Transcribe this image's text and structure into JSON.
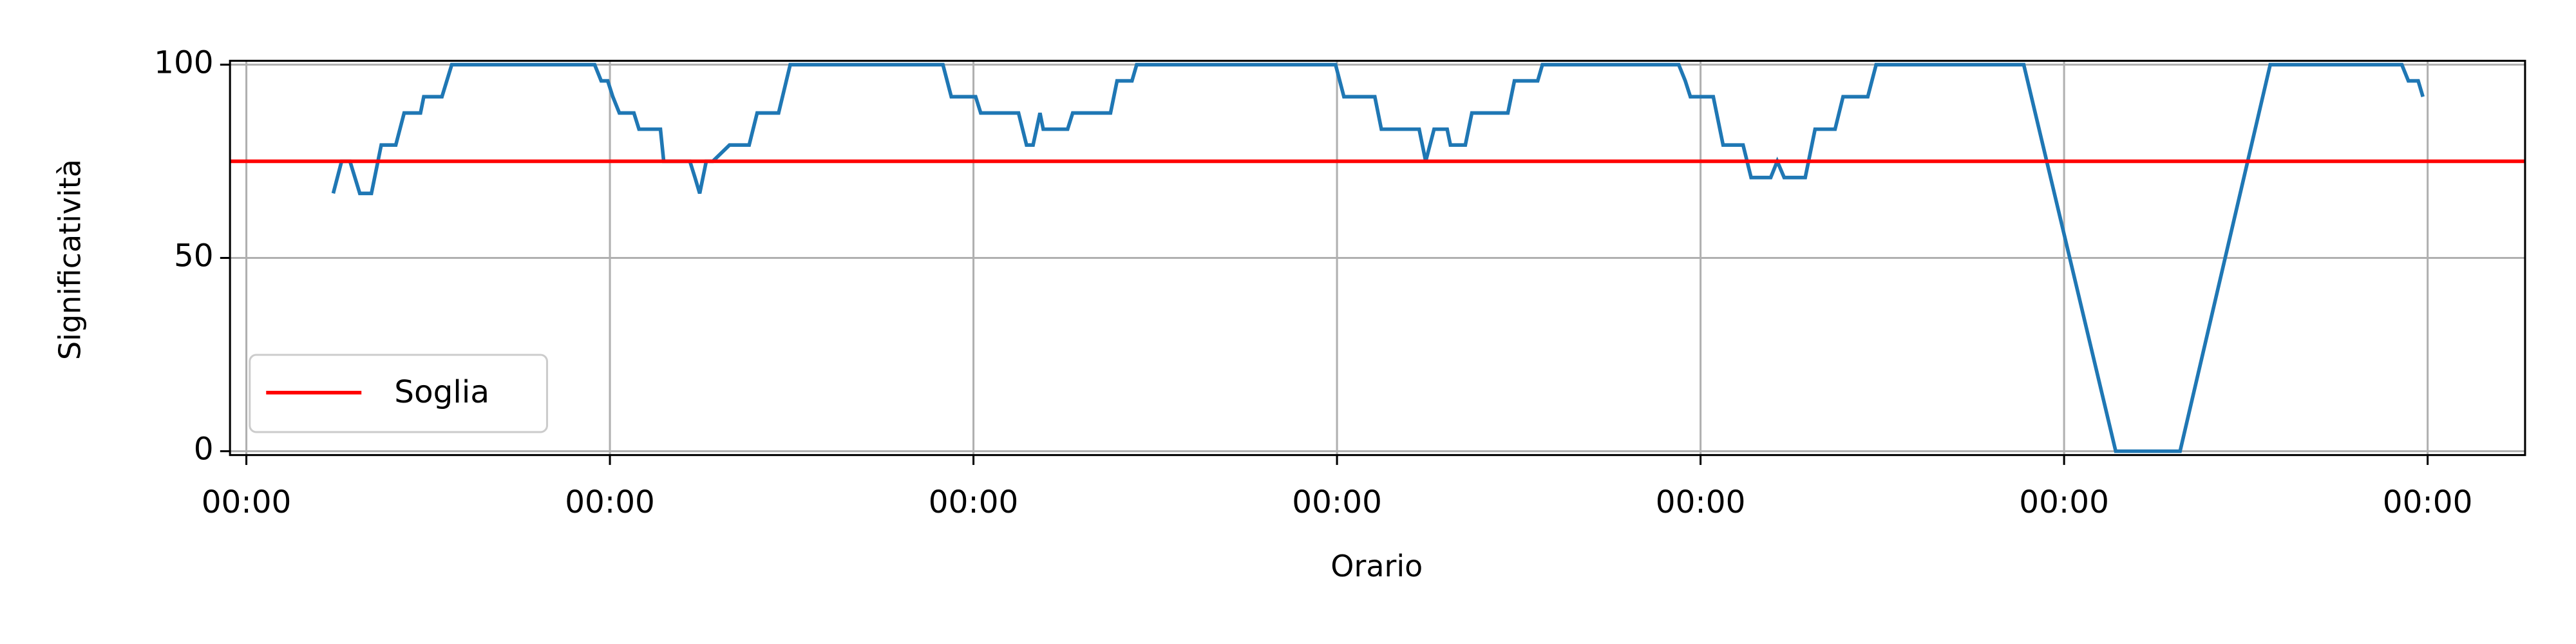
{
  "chart_data": {
    "type": "line",
    "xlabel": "Orario",
    "ylabel": "Significatività",
    "x": [
      0.239,
      0.262,
      0.285,
      0.312,
      0.344,
      0.371,
      0.411,
      0.434,
      0.479,
      0.488,
      0.538,
      0.565,
      0.958,
      0.976,
      0.994,
      1.008,
      1.026,
      1.066,
      1.08,
      1.139,
      1.148,
      1.22,
      1.234,
      1.247,
      1.265,
      1.283,
      1.329,
      1.383,
      1.405,
      1.464,
      1.496,
      1.916,
      1.939,
      2.006,
      2.02,
      2.124,
      2.146,
      2.164,
      2.183,
      2.192,
      2.259,
      2.273,
      2.377,
      2.395,
      2.436,
      2.449,
      2.996,
      3.019,
      3.104,
      3.122,
      3.226,
      3.244,
      3.267,
      3.303,
      3.312,
      3.353,
      3.371,
      3.47,
      3.488,
      3.552,
      3.565,
      3.94,
      3.958,
      3.972,
      4.035,
      4.062,
      4.117,
      4.139,
      4.193,
      4.211,
      4.23,
      4.288,
      4.315,
      4.37,
      4.392,
      4.46,
      4.483,
      4.889,
      5.142,
      5.319,
      5.567,
      5.929,
      5.947,
      5.974,
      5.987
    ],
    "series": [
      {
        "color": "#1f77b4",
        "values": [
          66.7,
          75,
          75,
          66.7,
          66.7,
          79.2,
          79.2,
          87.5,
          87.5,
          91.7,
          91.7,
          100,
          100,
          95.8,
          95.8,
          91.7,
          87.5,
          87.5,
          83.3,
          83.3,
          75,
          75,
          70.8,
          66.7,
          75,
          75,
          79.2,
          79.2,
          87.5,
          87.5,
          100,
          100,
          91.7,
          91.7,
          87.5,
          87.5,
          79.2,
          79.2,
          87.5,
          83.3,
          83.3,
          87.5,
          87.5,
          95.8,
          95.8,
          100,
          100,
          91.7,
          91.7,
          83.3,
          83.3,
          75,
          83.3,
          83.3,
          79.2,
          79.2,
          87.5,
          87.5,
          95.8,
          95.8,
          100,
          100,
          95.8,
          91.7,
          91.7,
          79.2,
          79.2,
          70.8,
          70.8,
          75,
          70.8,
          70.8,
          83.3,
          83.3,
          91.7,
          91.7,
          100,
          100,
          0,
          0,
          100,
          100,
          95.8,
          95.8,
          91.7
        ]
      }
    ],
    "threshold": {
      "name": "Soglia",
      "value": 75,
      "color": "#ff0000"
    },
    "xlim": [
      -0.045,
      6.268
    ],
    "xticks": [
      {
        "value": 0,
        "label": "00:00"
      },
      {
        "value": 1,
        "label": "00:00"
      },
      {
        "value": 2,
        "label": "00:00"
      },
      {
        "value": 3,
        "label": "00:00"
      },
      {
        "value": 4,
        "label": "00:00"
      },
      {
        "value": 5,
        "label": "00:00"
      },
      {
        "value": 6,
        "label": "00:00"
      }
    ],
    "ylim": [
      -1,
      101
    ],
    "yticks": [
      0,
      50,
      100
    ],
    "grid": true,
    "legend": "lower left"
  }
}
